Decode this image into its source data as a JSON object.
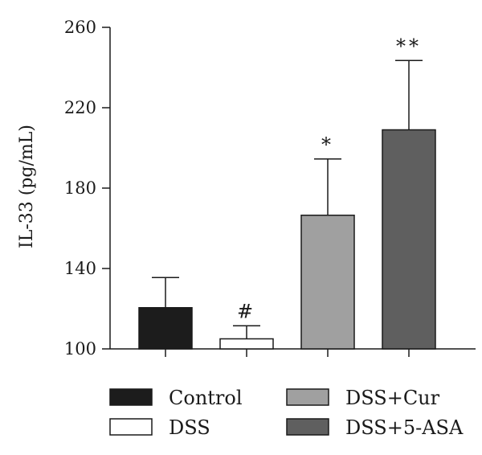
{
  "chart_data": {
    "type": "bar",
    "title": "",
    "xlabel": "",
    "ylabel": "IL-33 (pg/mL)",
    "ylim": [
      100,
      260
    ],
    "yticks": [
      100,
      140,
      180,
      220,
      260
    ],
    "categories": [
      "Control",
      "DSS",
      "DSS+Cur",
      "DSS+5-ASA"
    ],
    "values": [
      120.5,
      105,
      166.5,
      209
    ],
    "error": [
      15,
      6.5,
      28,
      34.5
    ],
    "annotations": [
      "",
      "#",
      "*",
      "**"
    ],
    "colors": [
      "#1c1c1c",
      "#ffffff",
      "#a0a0a0",
      "#5f5f5f"
    ],
    "legend": {
      "placement": "bottom",
      "entries": [
        "Control",
        "DSS+Cur",
        "DSS",
        "DSS+5-ASA"
      ]
    },
    "grid": false
  }
}
